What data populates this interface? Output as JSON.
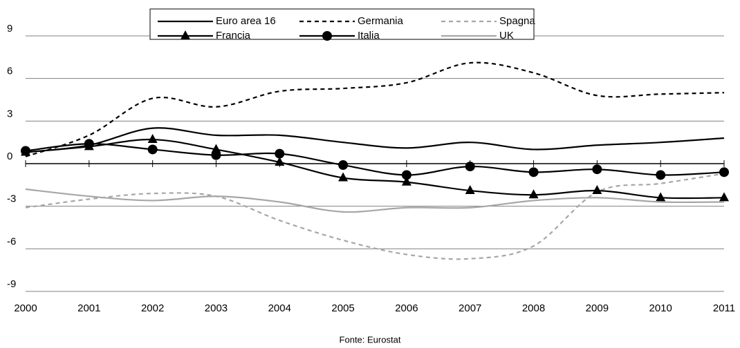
{
  "chart_data": {
    "type": "line",
    "x": [
      2000,
      2001,
      2002,
      2003,
      2004,
      2005,
      2006,
      2007,
      2008,
      2009,
      2010,
      2011
    ],
    "xlim": [
      2000,
      2011
    ],
    "xticks": [
      2000,
      2001,
      2002,
      2003,
      2004,
      2005,
      2006,
      2007,
      2008,
      2009,
      2010,
      2011
    ],
    "ylim": [
      -9,
      9
    ],
    "yticks": [
      -9,
      -6,
      -3,
      0,
      3,
      6,
      9
    ],
    "grid": true,
    "legend": "top",
    "smooth": true,
    "series": [
      {
        "name": "Euro area 16",
        "color": "#000000",
        "line_style": "solid",
        "values": [
          0.8,
          1.3,
          2.5,
          2.0,
          2.0,
          1.5,
          1.1,
          1.5,
          1.0,
          1.3,
          1.5,
          1.8
        ]
      },
      {
        "name": "Germania",
        "color": "#000000",
        "line_style": "dashed",
        "values": [
          0.5,
          2.0,
          4.6,
          4.0,
          5.1,
          5.3,
          5.7,
          7.1,
          6.4,
          4.8,
          4.9,
          5.0
        ]
      },
      {
        "name": "Spagna",
        "color": "#a6a6a6",
        "line_style": "dashed",
        "values": [
          -3.1,
          -2.5,
          -2.1,
          -2.3,
          -4.0,
          -5.4,
          -6.4,
          -6.7,
          -5.8,
          -2.0,
          -1.4,
          -0.7
        ]
      },
      {
        "name": "Francia",
        "color": "#000000",
        "line_style": "solid",
        "marker": "triangle",
        "values": [
          0.8,
          1.2,
          1.7,
          1.0,
          0.1,
          -1.0,
          -1.3,
          -1.9,
          -2.2,
          -1.9,
          -2.4,
          -2.4
        ]
      },
      {
        "name": "Italia",
        "color": "#000000",
        "line_style": "solid",
        "marker": "circle",
        "values": [
          0.9,
          1.4,
          1.0,
          0.6,
          0.7,
          -0.1,
          -0.8,
          -0.2,
          -0.6,
          -0.4,
          -0.8,
          -0.6
        ]
      },
      {
        "name": "UK",
        "color": "#a6a6a6",
        "line_style": "solid",
        "values": [
          -1.8,
          -2.3,
          -2.6,
          -2.3,
          -2.7,
          -3.4,
          -3.1,
          -3.1,
          -2.6,
          -2.4,
          -2.7,
          -2.7
        ]
      }
    ],
    "source": "Fonte: Eurostat"
  }
}
